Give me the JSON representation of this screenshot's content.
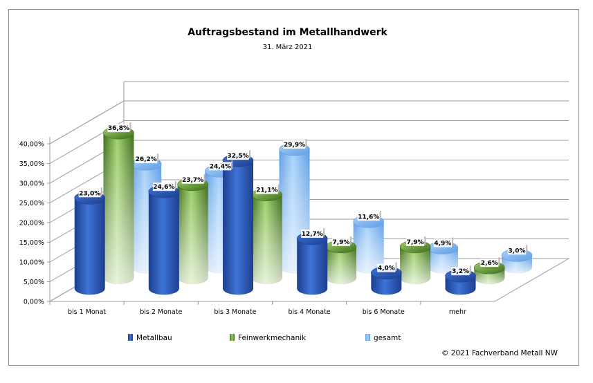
{
  "chart_data": {
    "type": "bar",
    "title": "Auftragsbestand im Metallhandwerk",
    "subtitle": "31. März 2021",
    "categories": [
      "bis 1 Monat",
      "bis 2 Monate",
      "bis 3 Monate",
      "bis 4 Monate",
      "bis 6 Monate",
      "mehr"
    ],
    "series": [
      {
        "name": "Metallbau",
        "values": [
          23.0,
          24.6,
          32.5,
          12.7,
          4.0,
          3.2
        ],
        "labels": [
          "23,0%",
          "24,6%",
          "32,5%",
          "12,7%",
          "4,0%",
          "3,2%"
        ]
      },
      {
        "name": "Feinwerkmechanik",
        "values": [
          36.8,
          23.7,
          21.1,
          7.9,
          7.9,
          2.6
        ],
        "labels": [
          "36,8%",
          "23,7%",
          "21,1%",
          "7,9%",
          "7,9%",
          "2,6%"
        ]
      },
      {
        "name": "gesamt",
        "values": [
          26.2,
          24.4,
          29.9,
          11.6,
          4.9,
          3.0
        ],
        "labels": [
          "26,2%",
          "24,4%",
          "29,9%",
          "11,6%",
          "4,9%",
          "3,0%"
        ]
      }
    ],
    "yticks": [
      "0,00%",
      "5,00%",
      "10,00%",
      "15,00%",
      "20,00%",
      "25,00%",
      "30,00%",
      "35,00%",
      "40,00%"
    ],
    "ylim": [
      0,
      40
    ],
    "legend_position": "bottom",
    "grid": true,
    "colors": {
      "Metallbau": "#2f5fbf",
      "Feinwerkmechanik": "#5e9a33",
      "gesamt": "#7fb5f0"
    }
  },
  "footer": {
    "copyright": "© 2021 Fachverband Metall NW"
  }
}
